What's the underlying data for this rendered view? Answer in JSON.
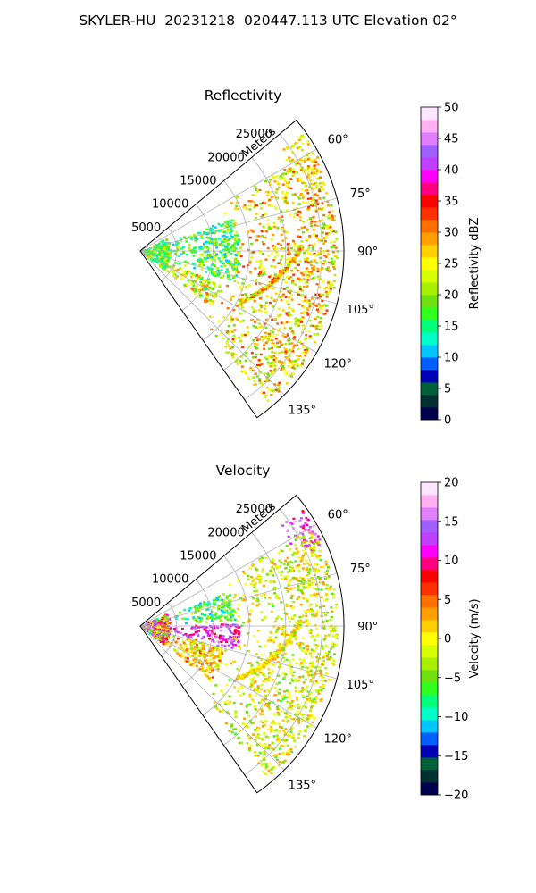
{
  "figure": {
    "suptitle": "SKYLER-HU  20231218  020447.113 UTC Elevation 02°"
  },
  "chart_data": [
    {
      "type": "heatmap",
      "subtype": "polar-sector (PPI radar scan)",
      "title": "Reflectivity",
      "radial_label": "Meters",
      "theta_range_deg": [
        50,
        145
      ],
      "r_range": [
        0,
        28000
      ],
      "r_ticks": [
        5000,
        10000,
        15000,
        20000,
        25000
      ],
      "r_tick_labels": [
        "5000",
        "10000",
        "15000",
        "20000",
        "25000"
      ],
      "theta_ticks": [
        60,
        75,
        90,
        105,
        120,
        135
      ],
      "theta_tick_labels": [
        "60°",
        "75°",
        "90°",
        "105°",
        "120°",
        "135°"
      ],
      "grid": true,
      "colorbar": {
        "label": "Reflectivity dBZ",
        "min": 0,
        "max": 50,
        "ticks": [
          0,
          5,
          10,
          15,
          20,
          25,
          30,
          35,
          40,
          45,
          50
        ],
        "tick_labels": [
          "0",
          "5",
          "10",
          "15",
          "20",
          "25",
          "30",
          "35",
          "40",
          "45",
          "50"
        ],
        "colors": [
          "#00004c",
          "#003030",
          "#00603a",
          "#0000b4",
          "#0060ff",
          "#00c8ff",
          "#00ffc8",
          "#00ff7a",
          "#30ff20",
          "#70e010",
          "#a8f000",
          "#d8ff00",
          "#ffff00",
          "#ffd000",
          "#ffa000",
          "#ff7000",
          "#ff3000",
          "#ff0000",
          "#ff0080",
          "#ff00ff",
          "#c040ff",
          "#a060ff",
          "#e080ff",
          "#ffb0f0",
          "#ffe6ff"
        ]
      },
      "echoes": [
        {
          "feature": "near-range clutter",
          "theta": [
            62,
            128
          ],
          "r": [
            0,
            4000
          ],
          "value_range": [
            12,
            24
          ]
        },
        {
          "feature": "main precipitation cell",
          "theta": [
            70,
            108
          ],
          "r": [
            4000,
            13500
          ],
          "value_range": [
            10,
            24
          ]
        },
        {
          "feature": "southeast band",
          "theta": [
            112,
            128
          ],
          "r": [
            3000,
            12000
          ],
          "value_range": [
            15,
            32
          ]
        },
        {
          "feature": "linear echo",
          "theta": [
            88,
            118
          ],
          "r": [
            15000,
            22000
          ],
          "value_range": [
            18,
            35
          ]
        },
        {
          "feature": "far-range arc",
          "theta": [
            54,
            66
          ],
          "r": [
            23000,
            27500
          ],
          "value_range": [
            20,
            30
          ]
        },
        {
          "feature": "isolated echoes",
          "theta": [
            60,
            140
          ],
          "r": [
            12000,
            27000
          ],
          "value_range": [
            18,
            34
          ]
        }
      ]
    },
    {
      "type": "heatmap",
      "subtype": "polar-sector (PPI radar scan)",
      "title": "Velocity",
      "radial_label": "Meters",
      "theta_range_deg": [
        50,
        145
      ],
      "r_range": [
        0,
        28000
      ],
      "r_ticks": [
        5000,
        10000,
        15000,
        20000,
        25000
      ],
      "r_tick_labels": [
        "5000",
        "10000",
        "15000",
        "20000",
        "25000"
      ],
      "theta_ticks": [
        60,
        75,
        90,
        105,
        120,
        135
      ],
      "theta_tick_labels": [
        "60°",
        "75°",
        "90°",
        "105°",
        "120°",
        "135°"
      ],
      "grid": true,
      "colorbar": {
        "label": "Velocity (m/s)",
        "min": -20,
        "max": 20,
        "ticks": [
          -20,
          -15,
          -10,
          -5,
          0,
          5,
          10,
          15,
          20
        ],
        "tick_labels": [
          "−20",
          "−15",
          "−10",
          "−5",
          "0",
          "5",
          "10",
          "15",
          "20"
        ],
        "colors": [
          "#00004c",
          "#003030",
          "#00603a",
          "#0000b4",
          "#0060ff",
          "#00c8ff",
          "#00ffc8",
          "#00ff7a",
          "#30ff20",
          "#70e010",
          "#a8f000",
          "#d8ff00",
          "#ffff00",
          "#ffd000",
          "#ffa000",
          "#ff7000",
          "#ff3000",
          "#ff0000",
          "#ff0080",
          "#ff00ff",
          "#c040ff",
          "#a060ff",
          "#e080ff",
          "#ffb0f0",
          "#ffe6ff"
        ]
      },
      "echoes": [
        {
          "feature": "near-range clutter",
          "theta": [
            62,
            128
          ],
          "r": [
            0,
            4000
          ],
          "value_range": [
            -8,
            16
          ]
        },
        {
          "feature": "inbound region",
          "theta": [
            68,
            86
          ],
          "r": [
            4000,
            13000
          ],
          "value_range": [
            -12,
            -2
          ]
        },
        {
          "feature": "outbound core",
          "theta": [
            88,
            104
          ],
          "r": [
            4000,
            13500
          ],
          "value_range": [
            8,
            16
          ]
        },
        {
          "feature": "southern weak motion",
          "theta": [
            104,
            128
          ],
          "r": [
            3000,
            12000
          ],
          "value_range": [
            -4,
            6
          ]
        },
        {
          "feature": "linear echo",
          "theta": [
            88,
            118
          ],
          "r": [
            15000,
            22000
          ],
          "value_range": [
            -2,
            4
          ]
        },
        {
          "feature": "far-range arc",
          "theta": [
            54,
            66
          ],
          "r": [
            23000,
            27500
          ],
          "value_range": [
            8,
            18
          ]
        },
        {
          "feature": "isolated echoes",
          "theta": [
            60,
            140
          ],
          "r": [
            12000,
            27000
          ],
          "value_range": [
            -6,
            4
          ]
        }
      ]
    }
  ]
}
